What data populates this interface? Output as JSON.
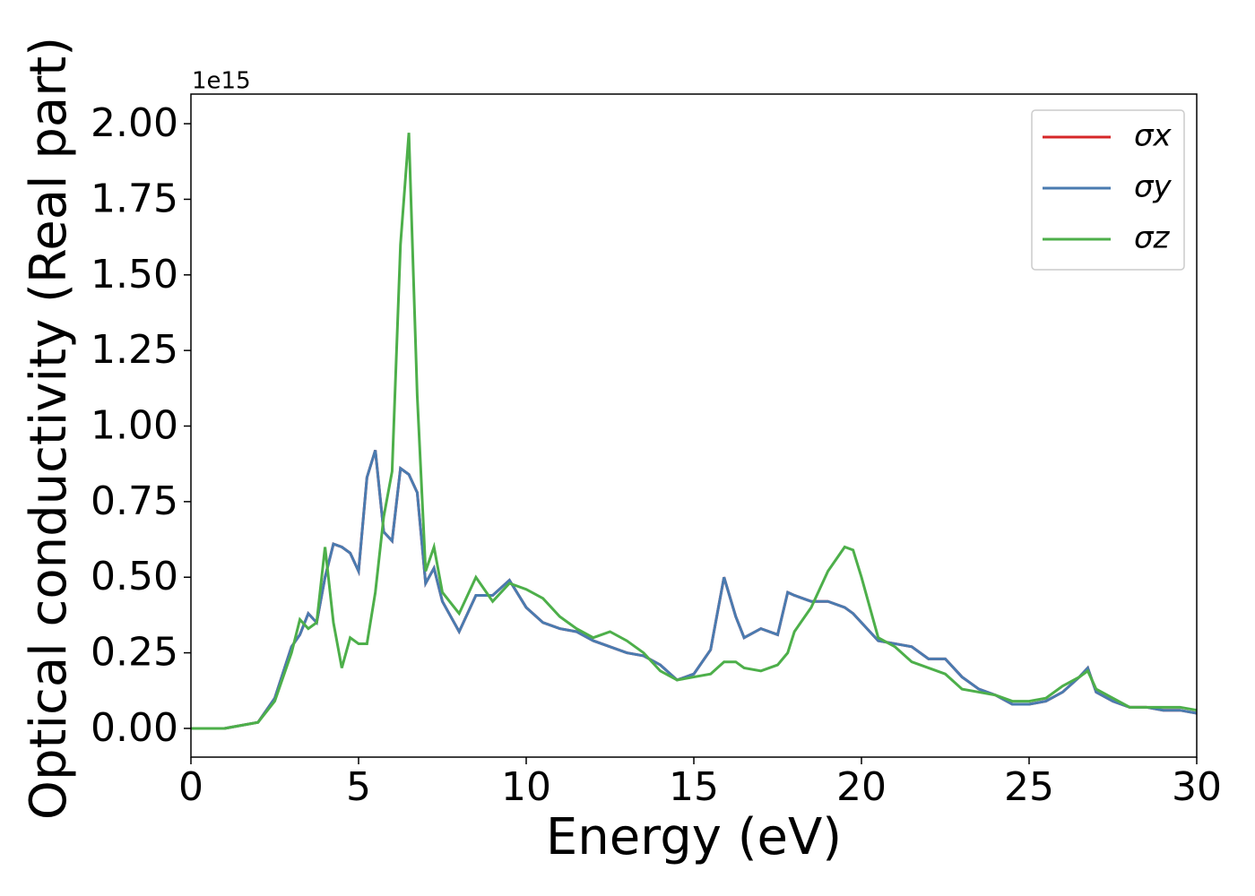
{
  "chart_data": {
    "type": "line",
    "xlabel": "Energy (eV)",
    "ylabel": "Optical conductivity (Real part)",
    "y_offset_label": "1e15",
    "x": [
      0,
      1,
      2,
      2.5,
      3,
      3.25,
      3.5,
      3.75,
      4,
      4.25,
      4.5,
      4.75,
      5,
      5.25,
      5.5,
      5.75,
      6,
      6.25,
      6.5,
      6.75,
      7,
      7.25,
      7.5,
      8,
      8.5,
      9,
      9.5,
      10,
      10.5,
      11,
      11.5,
      12,
      12.5,
      13,
      13.5,
      14,
      14.5,
      15,
      15.5,
      15.9,
      16.25,
      16.5,
      17,
      17.5,
      17.8,
      18,
      18.5,
      19,
      19.5,
      19.75,
      20,
      20.5,
      21,
      21.5,
      22,
      22.5,
      23,
      23.5,
      24,
      24.5,
      25,
      25.5,
      26,
      26.5,
      26.75,
      27,
      27.5,
      28,
      28.5,
      29,
      29.5,
      30
    ],
    "series": [
      {
        "name": "σx",
        "color": "#d62728",
        "values": [
          0,
          0,
          0.02,
          0.1,
          0.27,
          0.31,
          0.38,
          0.35,
          0.5,
          0.61,
          0.6,
          0.58,
          0.52,
          0.83,
          0.92,
          0.65,
          0.62,
          0.86,
          0.84,
          0.78,
          0.48,
          0.53,
          0.42,
          0.32,
          0.44,
          0.44,
          0.49,
          0.4,
          0.35,
          0.33,
          0.32,
          0.29,
          0.27,
          0.25,
          0.24,
          0.21,
          0.16,
          0.18,
          0.26,
          0.5,
          0.37,
          0.3,
          0.33,
          0.31,
          0.45,
          0.44,
          0.42,
          0.42,
          0.4,
          0.38,
          0.35,
          0.29,
          0.28,
          0.27,
          0.23,
          0.23,
          0.17,
          0.13,
          0.11,
          0.08,
          0.08,
          0.09,
          0.12,
          0.17,
          0.2,
          0.12,
          0.09,
          0.07,
          0.07,
          0.06,
          0.06,
          0.05
        ]
      },
      {
        "name": "σy",
        "color": "#4a7bb0",
        "values": [
          0,
          0,
          0.02,
          0.1,
          0.27,
          0.31,
          0.38,
          0.35,
          0.5,
          0.61,
          0.6,
          0.58,
          0.52,
          0.83,
          0.92,
          0.65,
          0.62,
          0.86,
          0.84,
          0.78,
          0.48,
          0.53,
          0.42,
          0.32,
          0.44,
          0.44,
          0.49,
          0.4,
          0.35,
          0.33,
          0.32,
          0.29,
          0.27,
          0.25,
          0.24,
          0.21,
          0.16,
          0.18,
          0.26,
          0.5,
          0.37,
          0.3,
          0.33,
          0.31,
          0.45,
          0.44,
          0.42,
          0.42,
          0.4,
          0.38,
          0.35,
          0.29,
          0.28,
          0.27,
          0.23,
          0.23,
          0.17,
          0.13,
          0.11,
          0.08,
          0.08,
          0.09,
          0.12,
          0.17,
          0.2,
          0.12,
          0.09,
          0.07,
          0.07,
          0.06,
          0.06,
          0.05
        ]
      },
      {
        "name": "σz",
        "color": "#4daf4a",
        "values": [
          0,
          0,
          0.02,
          0.09,
          0.25,
          0.36,
          0.33,
          0.35,
          0.6,
          0.35,
          0.2,
          0.3,
          0.28,
          0.28,
          0.45,
          0.7,
          0.85,
          1.6,
          1.97,
          1.1,
          0.52,
          0.6,
          0.45,
          0.38,
          0.5,
          0.42,
          0.48,
          0.46,
          0.43,
          0.37,
          0.33,
          0.3,
          0.32,
          0.29,
          0.25,
          0.19,
          0.16,
          0.17,
          0.18,
          0.22,
          0.22,
          0.2,
          0.19,
          0.21,
          0.25,
          0.32,
          0.4,
          0.52,
          0.6,
          0.59,
          0.5,
          0.3,
          0.27,
          0.22,
          0.2,
          0.18,
          0.13,
          0.12,
          0.11,
          0.09,
          0.09,
          0.1,
          0.14,
          0.17,
          0.19,
          0.13,
          0.1,
          0.07,
          0.07,
          0.07,
          0.07,
          0.06
        ]
      }
    ],
    "xlim": [
      0,
      30
    ],
    "xticks": [
      0,
      5,
      10,
      15,
      20,
      25,
      30
    ],
    "ylim": [
      -0.095,
      2.098
    ],
    "yticks": [
      {
        "value": 0,
        "label": "0.00"
      },
      {
        "value": 0.25,
        "label": "0.25"
      },
      {
        "value": 0.5,
        "label": "0.50"
      },
      {
        "value": 0.75,
        "label": "0.75"
      },
      {
        "value": 1,
        "label": "1.00"
      },
      {
        "value": 1.25,
        "label": "1.25"
      },
      {
        "value": 1.5,
        "label": "1.50"
      },
      {
        "value": 1.75,
        "label": "1.75"
      },
      {
        "value": 2,
        "label": "2.00"
      }
    ],
    "legend": "upper right",
    "grid": false
  }
}
